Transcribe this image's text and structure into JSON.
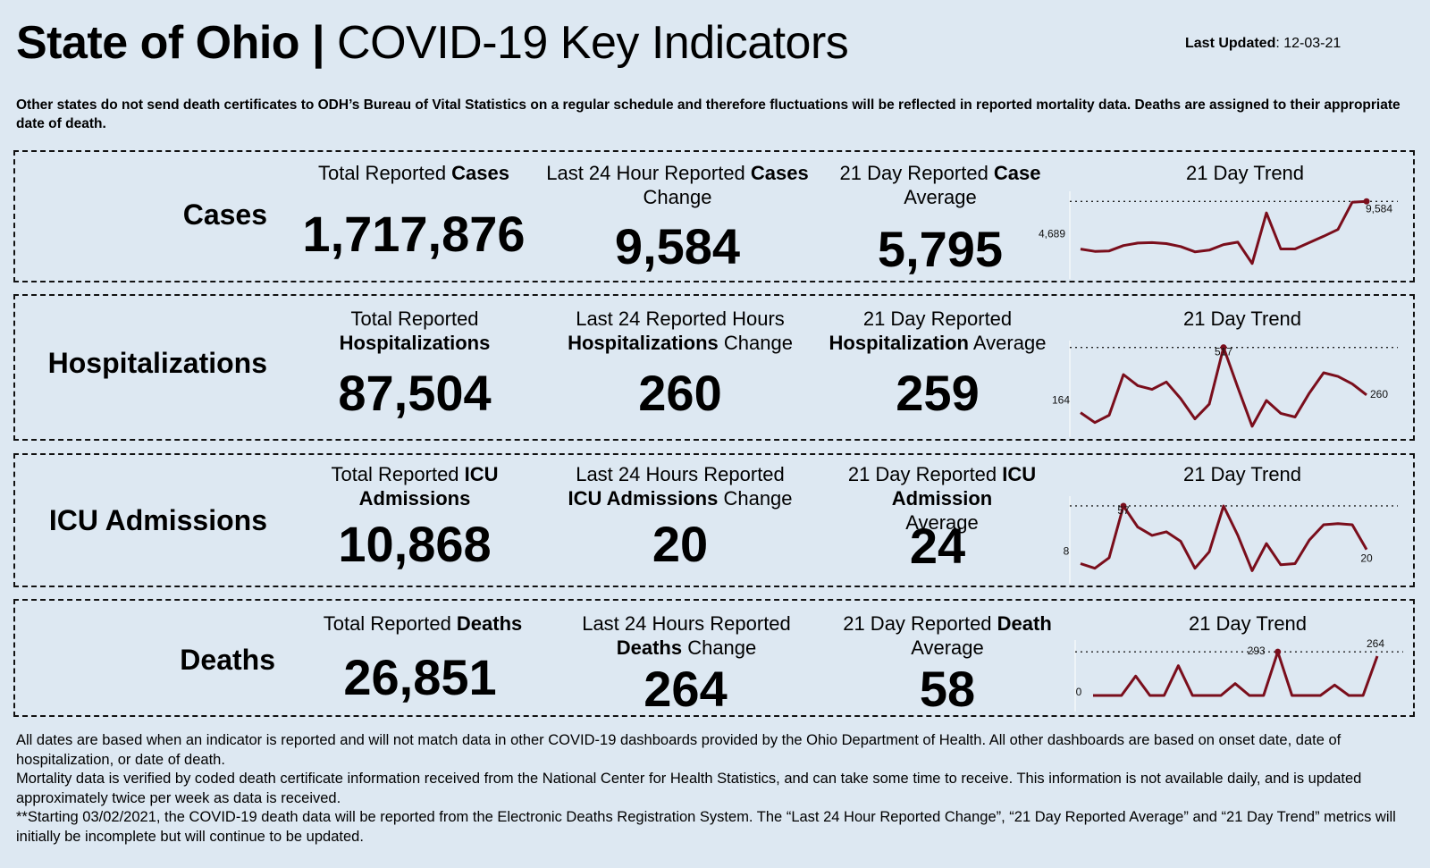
{
  "header": {
    "title_bold": "State of Ohio |",
    "title_rest": "COVID-19  Key Indicators",
    "updated_label": "Last Updated",
    "updated_value": ": 12-03-21"
  },
  "notice": "Other states do not send death certificates to ODH’s Bureau of Vital Statistics on a regular schedule and therefore fluctuations will be reflected in reported mortality data. Deaths are assigned to their appropriate date of death.",
  "panels": [
    {
      "label": "Cases",
      "total_pre": "Total Reported ",
      "total_bold": "Cases",
      "total_post": "",
      "total_value": "1,717,876",
      "change_pre": "Last 24 Hour Reported ",
      "change_bold": "Cases",
      "change_post": " Change",
      "change_value": "9,584",
      "avg_pre": "21 Day Reported ",
      "avg_bold": "Case",
      "avg_post": " Average",
      "avg_value": "5,795",
      "trend_title": "21 Day Trend",
      "trend_start_label": "4,689",
      "trend_end_label": "9,584",
      "trend_max_label": ""
    },
    {
      "label": "Hospitalizations",
      "total_pre": "Total Reported ",
      "total_bold": "Hospitalizations",
      "total_post": "",
      "total_value": "87,504",
      "change_pre": "Last 24 Reported Hours ",
      "change_bold": "Hospitalizations",
      "change_post": " Change",
      "change_value": "260",
      "avg_pre": "21 Day Reported ",
      "avg_bold": "Hospitalization",
      "avg_post": " Average",
      "avg_value": "259",
      "trend_title": "21 Day Trend",
      "trend_start_label": "164",
      "trend_end_label": "260",
      "trend_max_label": "517"
    },
    {
      "label": "ICU Admissions",
      "total_pre": "Total Reported ",
      "total_bold": "ICU",
      "total_post": " Admissions",
      "total_value": "10,868",
      "change_pre": "Last 24 Hours Reported ",
      "change_bold": "ICU Admissions",
      "change_post": " Change",
      "change_value": "20",
      "avg_pre": "21 Day Reported ",
      "avg_bold": "ICU Admission",
      "avg_post": " Average",
      "avg_value": "24",
      "trend_title": "21 Day Trend",
      "trend_start_label": "8",
      "trend_end_label": "20",
      "trend_max_label": "57"
    },
    {
      "label": "Deaths",
      "total_pre": "Total Reported ",
      "total_bold": "Deaths",
      "total_post": "",
      "total_value": "26,851",
      "change_pre": "Last 24 Hours Reported ",
      "change_bold": "Deaths",
      "change_post": " Change",
      "change_value": "264",
      "avg_pre": "21 Day Reported ",
      "avg_bold": "Death",
      "avg_post": " Average",
      "avg_value": "58",
      "trend_title": "21 Day Trend",
      "trend_start_label": "0",
      "trend_end_label": "264",
      "trend_max_label": "293"
    }
  ],
  "footer": [
    "All dates are based when an indicator is reported and will not match data in other COVID-19 dashboards provided by the Ohio Department of Health. All other dashboards are based on onset date, date of hospitalization, or date of death.",
    "Mortality data is verified by coded death certificate information received from the National Center for Health Statistics, and can take some time to receive. This information is not available daily, and is updated approximately twice per week as data is received.",
    "**Starting 03/02/2021, the COVID-19 death data will be reported from the Electronic Deaths Registration System. The “Last 24 Hour Reported Change”, “21 Day Reported Average” and “21 Day Trend” metrics will initially be incomplete but will continue to be updated."
  ],
  "colors": {
    "trend_line": "#7a0e1c",
    "background": "#dde8f2"
  },
  "chart_data": [
    {
      "type": "line",
      "title": "21 Day Trend",
      "series": "Cases",
      "values": [
        4689,
        4450,
        4500,
        5050,
        5300,
        5350,
        5250,
        4950,
        4400,
        4580,
        5150,
        5400,
        3200,
        8400,
        4700,
        4700,
        5350,
        6000,
        6700,
        9500,
        9584
      ],
      "ylim": [
        3000,
        9700
      ],
      "max_value": 9584
    },
    {
      "type": "line",
      "title": "21 Day Trend",
      "series": "Hospitalizations",
      "values": [
        164,
        110,
        150,
        370,
        310,
        290,
        330,
        240,
        130,
        210,
        517,
        300,
        90,
        230,
        160,
        140,
        270,
        380,
        360,
        320,
        260
      ],
      "ylim": [
        70,
        530
      ],
      "max_value": 517
    },
    {
      "type": "line",
      "title": "21 Day Trend",
      "series": "ICU Admissions",
      "values": [
        8,
        4,
        13,
        57,
        39,
        32,
        35,
        27,
        4,
        18,
        57,
        32,
        2,
        25,
        7,
        8,
        28,
        41,
        42,
        41,
        20
      ],
      "ylim": [
        0,
        60
      ],
      "max_value": 57
    },
    {
      "type": "line",
      "title": "21 Day Trend",
      "series": "Deaths",
      "values": [
        0,
        0,
        0,
        130,
        0,
        0,
        200,
        0,
        0,
        0,
        80,
        0,
        0,
        293,
        0,
        0,
        0,
        70,
        0,
        0,
        264
      ],
      "ylim": [
        0,
        300
      ],
      "max_value": 293
    }
  ]
}
